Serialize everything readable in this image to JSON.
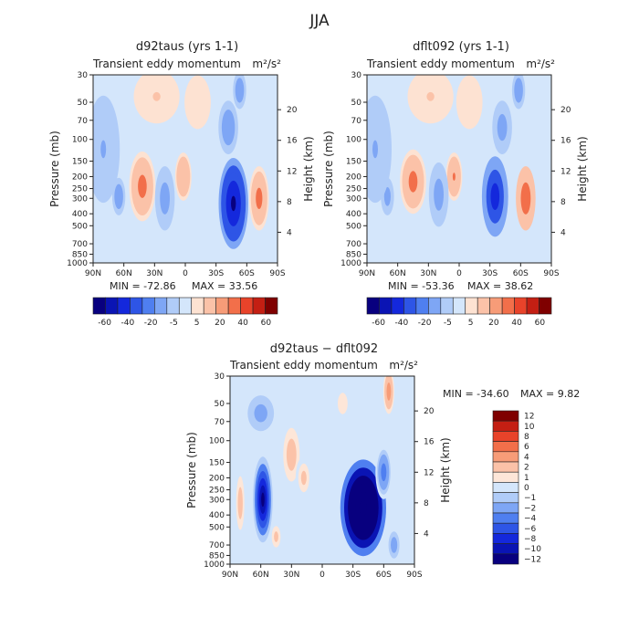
{
  "figure": {
    "title": "JJA"
  },
  "chart_data": [
    {
      "type": "heatmap",
      "title": "d92taus (yrs 1-1)",
      "subtitle_left": "Transient eddy momentum",
      "subtitle_right": "m²/s²",
      "xlabel": "",
      "ylabel": "Pressure (mb)",
      "y2label": "Height (km)",
      "x_ticks": [
        "90N",
        "60N",
        "30N",
        "0",
        "30S",
        "60S",
        "90S"
      ],
      "y_ticks": [
        "30",
        "50",
        "70",
        "100",
        "150",
        "200",
        "250",
        "300",
        "400",
        "500",
        "700",
        "850",
        "1000"
      ],
      "y2_ticks": [
        "4",
        "8",
        "12",
        "16",
        "20"
      ],
      "min_label": "MIN = -72.86",
      "max_label": "MAX = 33.56",
      "min": -72.86,
      "max": 33.56,
      "colorbar": {
        "orientation": "horizontal",
        "labels": [
          "-60",
          "-40",
          "-20",
          "-5",
          "5",
          "20",
          "40",
          "60"
        ]
      },
      "features": [
        {
          "lat": -47,
          "p": 330,
          "value": -72,
          "sx": 9,
          "sy": 0.85
        },
        {
          "lat": -42,
          "p": 80,
          "value": -12,
          "sx": 6,
          "sy": 0.5
        },
        {
          "lat": -53,
          "p": 40,
          "value": -15,
          "sx": 4,
          "sy": 0.35
        },
        {
          "lat": -72,
          "p": 300,
          "value": 30,
          "sx": 6,
          "sy": 0.6
        },
        {
          "lat": 42,
          "p": 240,
          "value": 25,
          "sx": 8,
          "sy": 0.65
        },
        {
          "lat": 2,
          "p": 200,
          "value": 20,
          "sx": 5,
          "sy": 0.45
        },
        {
          "lat": 65,
          "p": 290,
          "value": -15,
          "sx": 4,
          "sy": 0.35
        },
        {
          "lat": 20,
          "p": 300,
          "value": -8,
          "sx": 6,
          "sy": 0.6
        },
        {
          "lat": 28,
          "p": 45,
          "value": 6,
          "sx": 14,
          "sy": 0.5
        },
        {
          "lat": -12,
          "p": 50,
          "value": 5,
          "sx": 8,
          "sy": 0.5
        },
        {
          "lat": 80,
          "p": 120,
          "value": -6,
          "sx": 10,
          "sy": 1.0
        }
      ]
    },
    {
      "type": "heatmap",
      "title": "dflt092 (yrs 1-1)",
      "subtitle_left": "Transient eddy momentum",
      "subtitle_right": "m²/s²",
      "xlabel": "",
      "ylabel": "Pressure (mb)",
      "y2label": "Height (km)",
      "x_ticks": [
        "90N",
        "60N",
        "30N",
        "0",
        "30S",
        "60S",
        "90S"
      ],
      "y_ticks": [
        "30",
        "50",
        "70",
        "100",
        "150",
        "200",
        "250",
        "300",
        "400",
        "500",
        "700",
        "850",
        "1000"
      ],
      "y2_ticks": [
        "4",
        "8",
        "12",
        "16",
        "20"
      ],
      "min_label": "MIN = -53.36",
      "max_label": "MAX = 38.62",
      "min": -53.36,
      "max": 38.62,
      "colorbar": {
        "orientation": "horizontal",
        "labels": [
          "-60",
          "-40",
          "-20",
          "-5",
          "5",
          "20",
          "40",
          "60"
        ]
      },
      "features": [
        {
          "lat": -35,
          "p": 290,
          "value": -53,
          "sx": 8,
          "sy": 0.75
        },
        {
          "lat": -42,
          "p": 80,
          "value": -10,
          "sx": 6,
          "sy": 0.5
        },
        {
          "lat": -58,
          "p": 40,
          "value": -12,
          "sx": 4,
          "sy": 0.35
        },
        {
          "lat": -65,
          "p": 300,
          "value": 36,
          "sx": 6,
          "sy": 0.6
        },
        {
          "lat": 45,
          "p": 220,
          "value": 30,
          "sx": 8,
          "sy": 0.6
        },
        {
          "lat": 5,
          "p": 200,
          "value": 22,
          "sx": 5,
          "sy": 0.45
        },
        {
          "lat": 70,
          "p": 290,
          "value": -10,
          "sx": 4,
          "sy": 0.35
        },
        {
          "lat": 20,
          "p": 280,
          "value": -8,
          "sx": 6,
          "sy": 0.6
        },
        {
          "lat": 28,
          "p": 45,
          "value": 6,
          "sx": 14,
          "sy": 0.5
        },
        {
          "lat": -10,
          "p": 50,
          "value": 5,
          "sx": 8,
          "sy": 0.5
        },
        {
          "lat": 82,
          "p": 120,
          "value": -6,
          "sx": 10,
          "sy": 1.0
        }
      ]
    },
    {
      "type": "heatmap",
      "title": "d92taus − dflt092",
      "subtitle_left": "Transient eddy momentum",
      "subtitle_right": "m²/s²",
      "xlabel": "",
      "ylabel": "Pressure (mb)",
      "y2label": "Height (km)",
      "x_ticks": [
        "90N",
        "60N",
        "30N",
        "0",
        "30S",
        "60S",
        "90S"
      ],
      "y_ticks": [
        "30",
        "50",
        "70",
        "100",
        "150",
        "200",
        "250",
        "300",
        "400",
        "500",
        "700",
        "850",
        "1000"
      ],
      "y2_ticks": [
        "4",
        "8",
        "12",
        "16",
        "20"
      ],
      "min_label": "MIN = -34.60",
      "max_label": "MAX =    9.82",
      "min": -34.6,
      "max": 9.82,
      "colorbar": {
        "orientation": "vertical",
        "labels": [
          "12",
          "10",
          "8",
          "6",
          "4",
          "2",
          "1",
          "0",
          "−1",
          "−2",
          "−4",
          "−6",
          "−8",
          "−10",
          "−12"
        ]
      },
      "features": [
        {
          "lat": -40,
          "p": 350,
          "value": -34,
          "sx": 14,
          "sy": 0.9
        },
        {
          "lat": 58,
          "p": 300,
          "value": -13,
          "sx": 6,
          "sy": 0.8
        },
        {
          "lat": 30,
          "p": 130,
          "value": 4,
          "sx": 6,
          "sy": 0.6
        },
        {
          "lat": 18,
          "p": 200,
          "value": 3,
          "sx": 5,
          "sy": 0.4
        },
        {
          "lat": 80,
          "p": 320,
          "value": 4,
          "sx": 3,
          "sy": 0.6
        },
        {
          "lat": 45,
          "p": 600,
          "value": 3,
          "sx": 4,
          "sy": 0.3
        },
        {
          "lat": -65,
          "p": 40,
          "value": 6,
          "sx": 4,
          "sy": 0.5
        },
        {
          "lat": -60,
          "p": 180,
          "value": -6,
          "sx": 5,
          "sy": 0.5
        },
        {
          "lat": 60,
          "p": 60,
          "value": -3,
          "sx": 12,
          "sy": 0.5
        },
        {
          "lat": -20,
          "p": 50,
          "value": 2,
          "sx": 6,
          "sy": 0.4
        },
        {
          "lat": -70,
          "p": 700,
          "value": -4,
          "sx": 4,
          "sy": 0.3
        }
      ]
    }
  ],
  "colors": {
    "full_field": [
      "#08007f",
      "#0a14b4",
      "#1428dc",
      "#2e55e6",
      "#4f7ff0",
      "#7ea6f5",
      "#b0ccf8",
      "#d4e6fb",
      "#fde2d2",
      "#fbc2a8",
      "#f79c78",
      "#f26f4a",
      "#e8432a",
      "#c41f13",
      "#7f0000"
    ],
    "difference": [
      "#08007f",
      "#0a14b4",
      "#1428dc",
      "#2e55e6",
      "#4f7ff0",
      "#7ea6f5",
      "#b0ccf8",
      "#d4e6fb",
      "#fde6d8",
      "#fbc2a8",
      "#f79c78",
      "#f26f4a",
      "#e8432a",
      "#c41f13",
      "#7f0000"
    ]
  }
}
